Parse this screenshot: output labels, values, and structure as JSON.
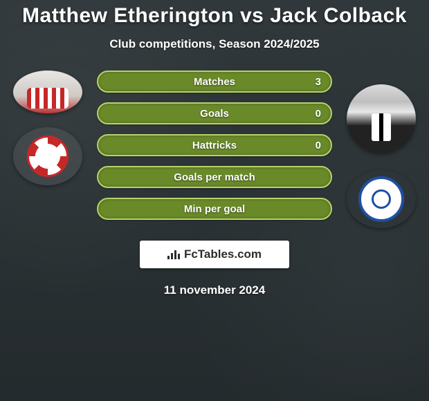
{
  "title": "Matthew Etherington vs Jack Colback",
  "subtitle": "Club competitions, Season 2024/2025",
  "date": "11 november 2024",
  "brand": {
    "text": "FcTables.com"
  },
  "typography": {
    "title_fontsize": 30,
    "subtitle_fontsize": 17,
    "stat_label_fontsize": 15,
    "stat_value_fontsize": 15,
    "brand_fontsize": 17,
    "date_fontsize": 17
  },
  "colors": {
    "background": "#2a3235",
    "text": "#ffffff",
    "bar_fill": "#6a8a2a",
    "bar_border": "#b7d469",
    "brand_bg": "#ffffff",
    "brand_text": "#2c2c2c"
  },
  "stats": [
    {
      "label": "Matches",
      "value": "3"
    },
    {
      "label": "Goals",
      "value": "0"
    },
    {
      "label": "Hattricks",
      "value": "0"
    },
    {
      "label": "Goals per match",
      "value": ""
    },
    {
      "label": "Min per goal",
      "value": ""
    }
  ],
  "players": {
    "left": {
      "name": "Matthew Etherington",
      "club": "Stoke City"
    },
    "right": {
      "name": "Jack Colback",
      "club": "Queens Park Rangers"
    }
  }
}
